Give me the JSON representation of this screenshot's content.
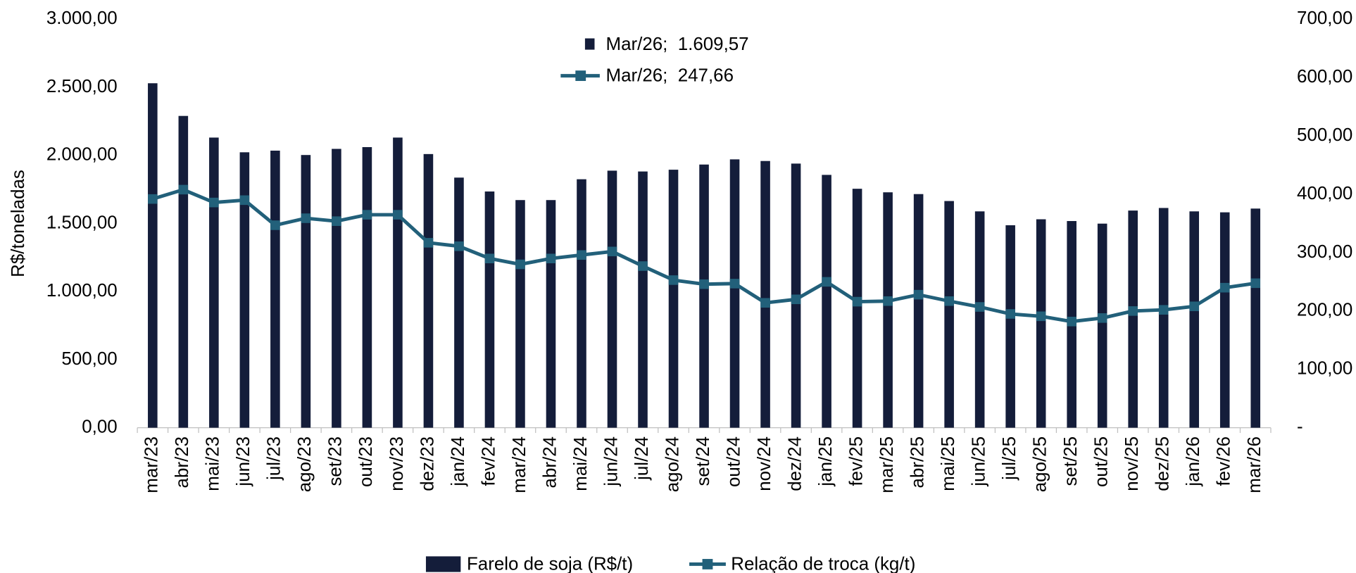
{
  "chart_data": {
    "type": "bar_line",
    "y_axis_label": "R$/toneladas",
    "categories": [
      "mar/23",
      "abr/23",
      "mai/23",
      "jun/23",
      "jul/23",
      "ago/23",
      "set/23",
      "out/23",
      "nov/23",
      "dez/23",
      "jan/24",
      "fev/24",
      "mar/24",
      "abr/24",
      "mai/24",
      "jun/24",
      "jul/24",
      "ago/24",
      "set/24",
      "out/24",
      "nov/24",
      "dez/24",
      "jan/25",
      "fev/25",
      "mar/25",
      "abr/25",
      "mai/25",
      "jun/25",
      "jul/25",
      "ago/25",
      "set/25",
      "out/25",
      "nov/25",
      "dez/25",
      "jan/26",
      "fev/26",
      "mar/26"
    ],
    "series": [
      {
        "name": "Farelo de soja (R$/t)",
        "type": "bar",
        "color": "#141d3a",
        "values": [
          2530,
          2290,
          2131,
          2023,
          2035,
          2003,
          2048,
          2061,
          2131,
          2010,
          1837,
          1735,
          1672,
          1672,
          1825,
          1888,
          1882,
          1895,
          1933,
          1971,
          1959,
          1940,
          1857,
          1755,
          1729,
          1716,
          1665,
          1589,
          1487,
          1531,
          1518,
          1499,
          1595,
          1614,
          1589,
          1582,
          1609.57
        ]
      },
      {
        "name": "Relação de troca (kg/t)",
        "type": "line",
        "axis": "y2",
        "color": "#22607a",
        "values": [
          392,
          408,
          386,
          390,
          347,
          359,
          354,
          365,
          365,
          317,
          311,
          290,
          280,
          290,
          296,
          302,
          277,
          253,
          246,
          247,
          214,
          220,
          250,
          216,
          217,
          228,
          217,
          207,
          195,
          191,
          182,
          188,
          200,
          202,
          208,
          240,
          247.66
        ]
      }
    ],
    "annotations": [
      "Mar/26;  1.609,57",
      "Mar/26;  247,66"
    ],
    "ylim": [
      0,
      3000
    ],
    "yticks": [
      {
        "value": 0,
        "label": "0,00"
      },
      {
        "value": 500,
        "label": "500,00"
      },
      {
        "value": 1000,
        "label": "1.000,00"
      },
      {
        "value": 1500,
        "label": "1.500,00"
      },
      {
        "value": 2000,
        "label": "2.000,00"
      },
      {
        "value": 2500,
        "label": "2.500,00"
      },
      {
        "value": 3000,
        "label": "3.000,00"
      }
    ],
    "y2lim": [
      0,
      700
    ],
    "y2ticks": [
      {
        "value": 0,
        "label": "-"
      },
      {
        "value": 100,
        "label": "100,00"
      },
      {
        "value": 200,
        "label": "200,00"
      },
      {
        "value": 300,
        "label": "300,00"
      },
      {
        "value": 400,
        "label": "400,00"
      },
      {
        "value": 500,
        "label": "500,00"
      },
      {
        "value": 600,
        "label": "600,00"
      },
      {
        "value": 700,
        "label": "700,00"
      }
    ],
    "grid": false,
    "legend": "bottom"
  }
}
